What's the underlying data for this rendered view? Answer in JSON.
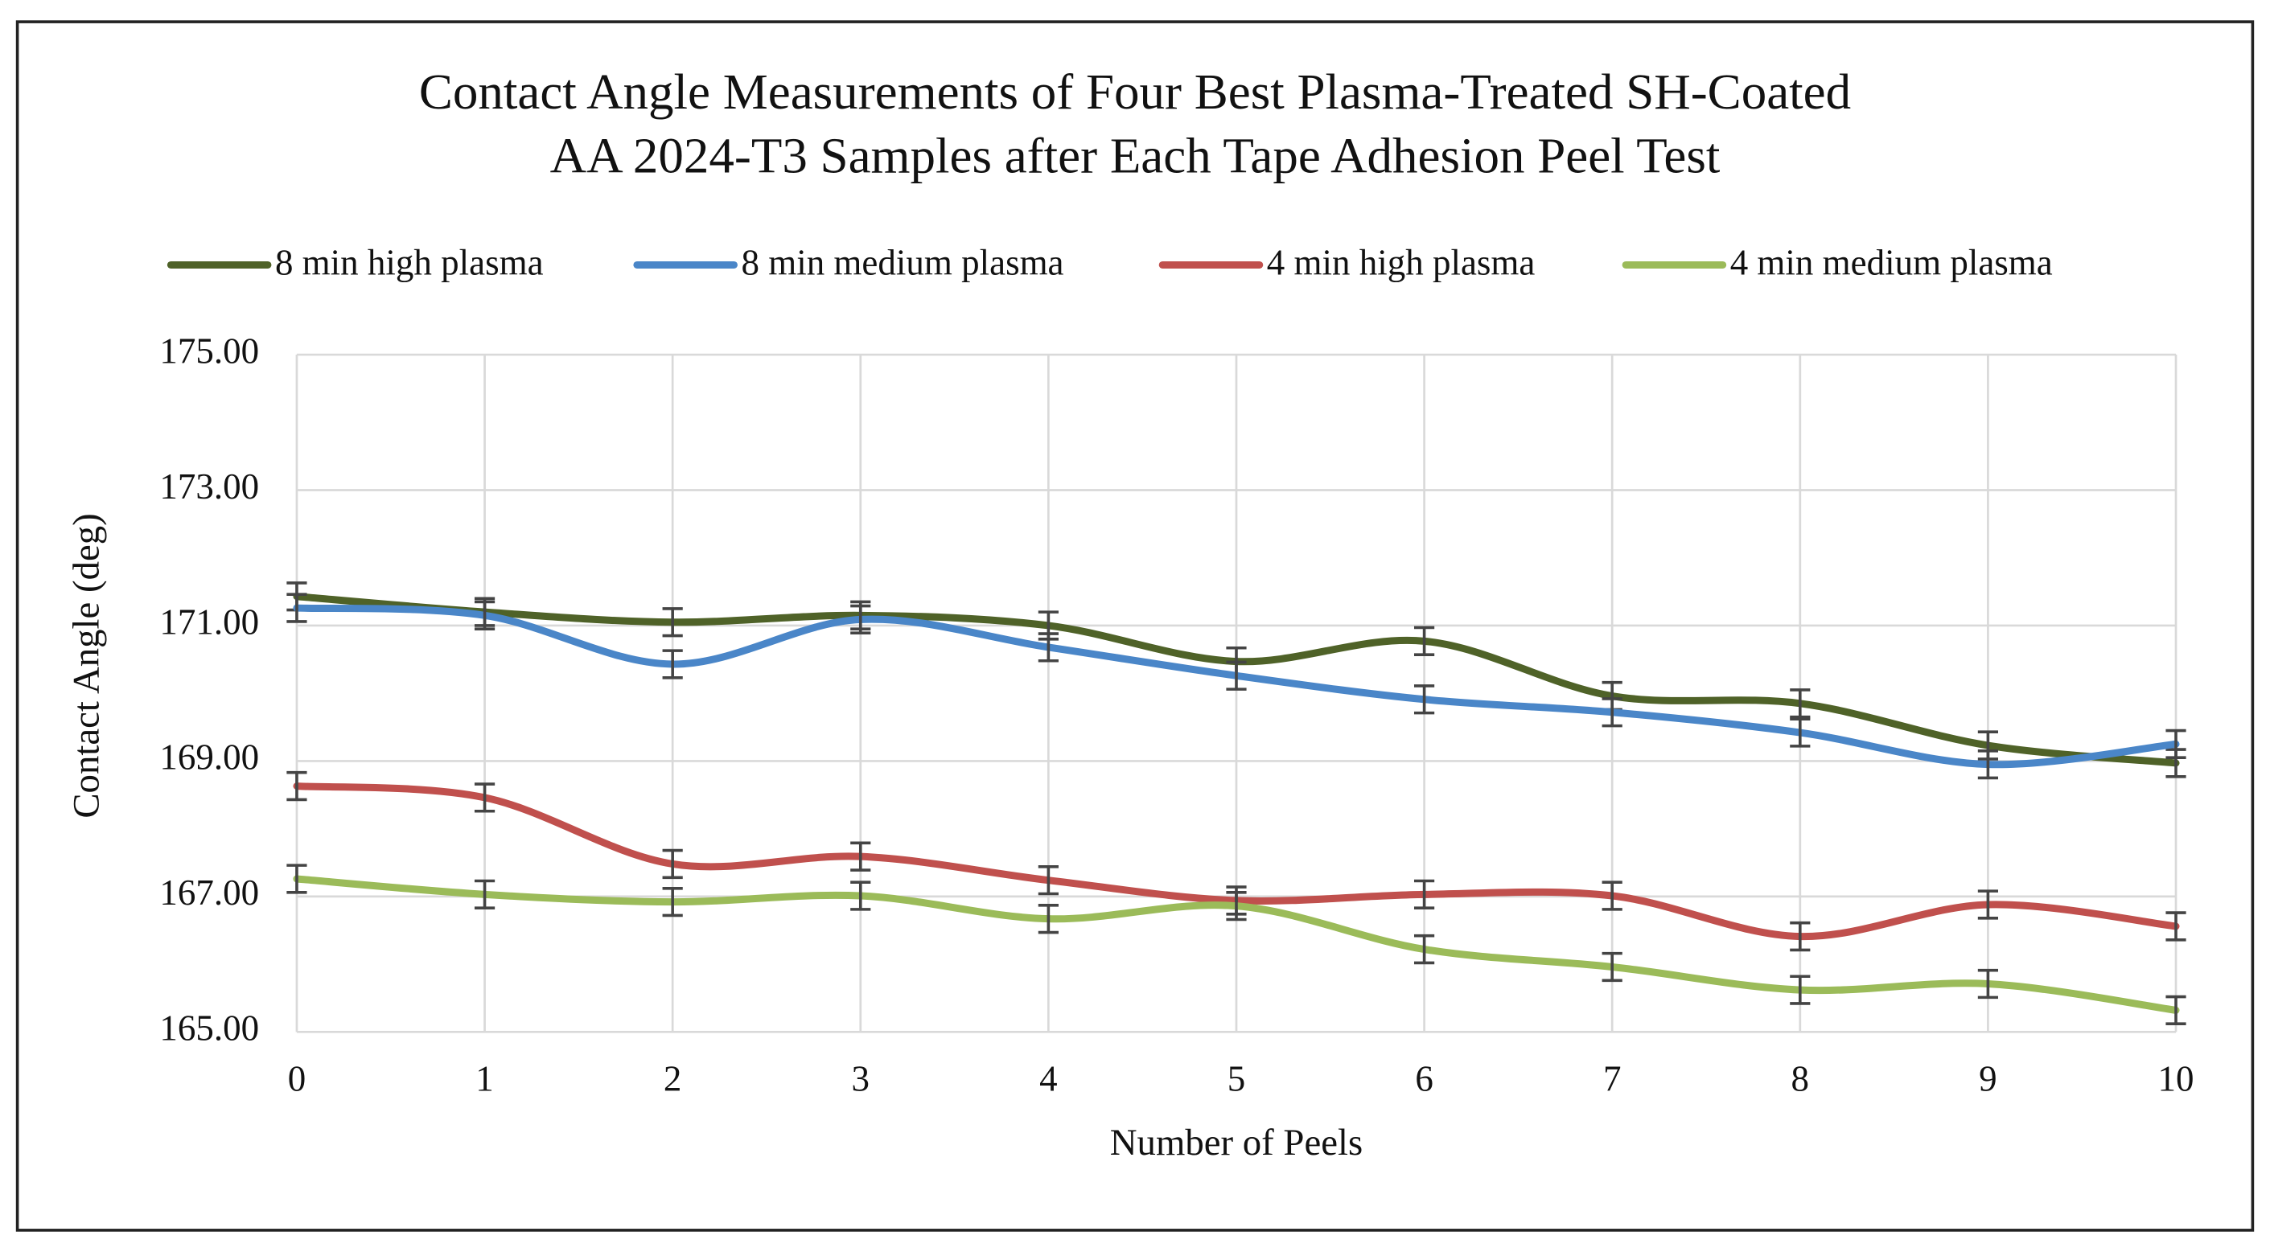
{
  "chart_data": {
    "type": "line",
    "title": [
      "Contact Angle Measurements of Four Best Plasma-Treated SH-Coated",
      "AA 2024-T3 Samples after Each Tape Adhesion Peel Test"
    ],
    "x_label": "Number of Peels",
    "y_label": "Contact Angle (deg)",
    "x": [
      0,
      1,
      2,
      3,
      4,
      5,
      6,
      7,
      8,
      9,
      10
    ],
    "xlim": [
      0,
      10
    ],
    "xticks": [
      0,
      1,
      2,
      3,
      4,
      5,
      6,
      7,
      8,
      9,
      10
    ],
    "ylim": [
      165,
      175
    ],
    "yticks": [
      {
        "value": 165,
        "label": "165.00"
      },
      {
        "value": 167,
        "label": "167.00"
      },
      {
        "value": 169,
        "label": "169.00"
      },
      {
        "value": 171,
        "label": "171.00"
      },
      {
        "value": 173,
        "label": "173.00"
      },
      {
        "value": 175,
        "label": "175.00"
      }
    ],
    "grid": true,
    "legend": "top",
    "series": [
      {
        "name": "8 min high plasma",
        "color": "#4f6228",
        "values": [
          171.43,
          171.2,
          171.05,
          171.15,
          171.0,
          170.47,
          170.77,
          169.96,
          169.85,
          169.23,
          168.97
        ],
        "errors": [
          0.2,
          0.2,
          0.2,
          0.2,
          0.2,
          0.2,
          0.2,
          0.2,
          0.2,
          0.2,
          0.2
        ]
      },
      {
        "name": "8 min medium plasma",
        "color": "#4a86c8",
        "values": [
          171.26,
          171.15,
          170.43,
          171.09,
          170.68,
          170.26,
          169.91,
          169.72,
          169.42,
          168.95,
          169.25
        ],
        "errors": [
          0.2,
          0.2,
          0.2,
          0.2,
          0.2,
          0.2,
          0.2,
          0.2,
          0.2,
          0.2,
          0.2
        ]
      },
      {
        "name": "4 min high plasma",
        "color": "#c0504d",
        "values": [
          168.63,
          168.46,
          167.48,
          167.59,
          167.24,
          166.94,
          167.03,
          167.01,
          166.41,
          166.88,
          166.56
        ],
        "errors": [
          0.2,
          0.2,
          0.2,
          0.2,
          0.2,
          0.2,
          0.2,
          0.2,
          0.2,
          0.2,
          0.2
        ]
      },
      {
        "name": "4 min medium plasma",
        "color": "#9bbb59",
        "values": [
          167.26,
          167.03,
          166.92,
          167.01,
          166.67,
          166.86,
          166.22,
          165.96,
          165.62,
          165.71,
          165.32
        ],
        "errors": [
          0.2,
          0.2,
          0.2,
          0.2,
          0.2,
          0.2,
          0.2,
          0.2,
          0.2,
          0.2,
          0.2
        ]
      }
    ]
  }
}
